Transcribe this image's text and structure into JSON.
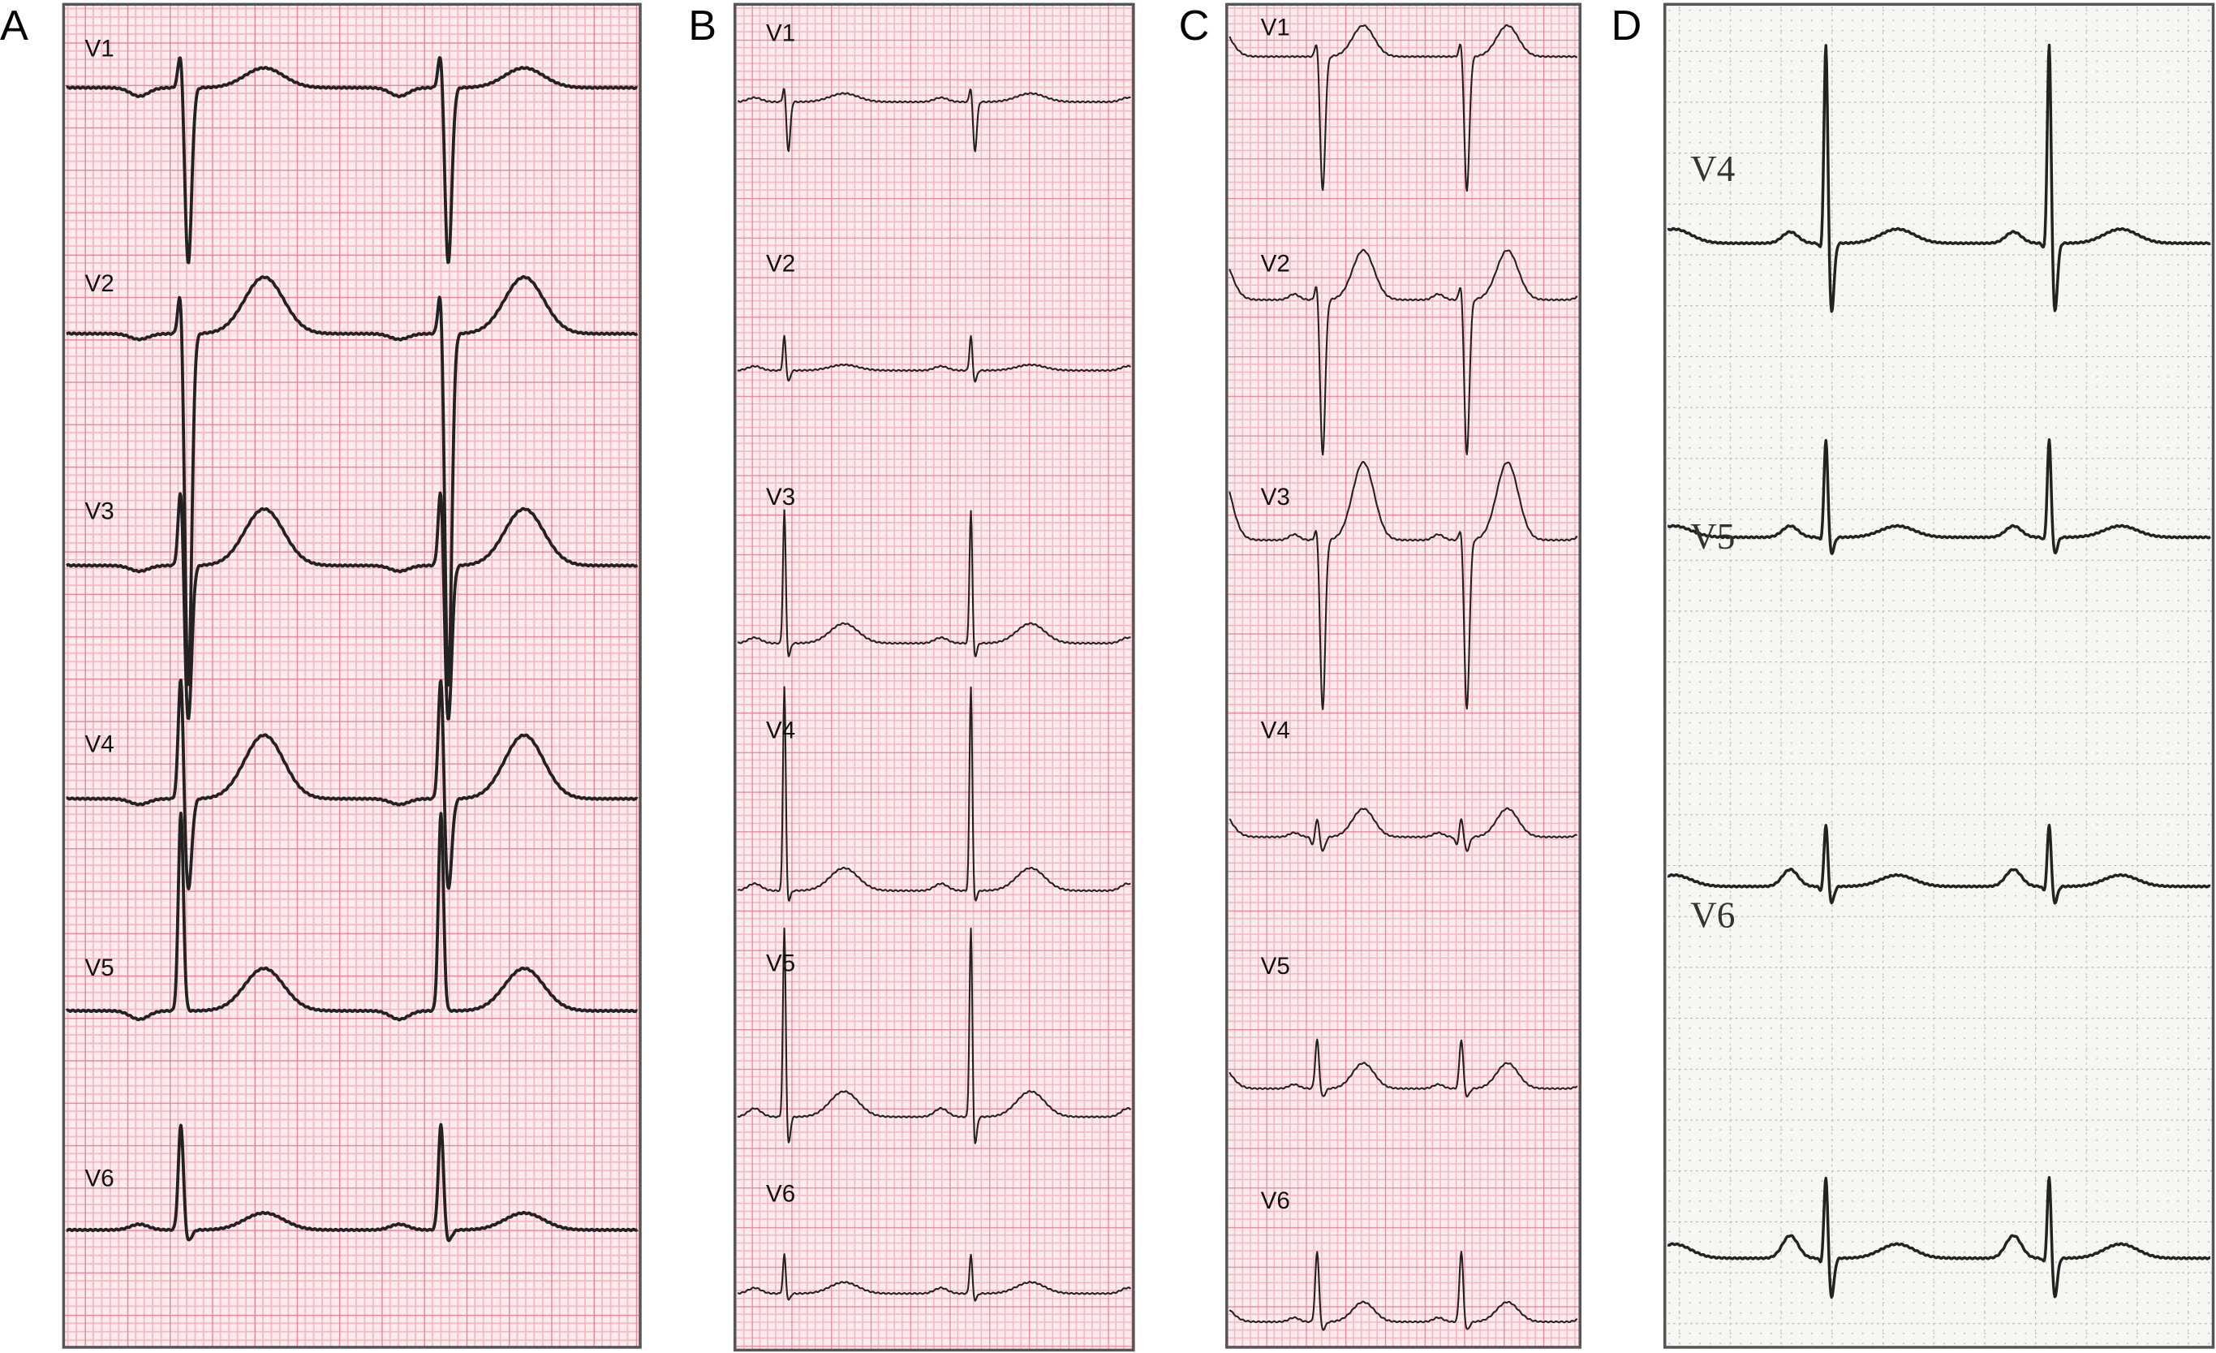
{
  "panels": [
    {
      "label": "A",
      "leads": [
        "V1",
        "V2",
        "V3",
        "V4",
        "V5",
        "V6"
      ],
      "paper": "pink grid"
    },
    {
      "label": "B",
      "leads": [
        "V1",
        "V2",
        "V3",
        "V4",
        "V5",
        "V6"
      ],
      "paper": "pink grid"
    },
    {
      "label": "C",
      "leads": [
        "V1",
        "V2",
        "V3",
        "V4",
        "V5",
        "V6"
      ],
      "paper": "pink grid"
    },
    {
      "label": "D",
      "leads": [
        "V4",
        "V5",
        "V6"
      ],
      "paper": "dotted grey grid"
    }
  ],
  "colors": {
    "grid_major": "#f07f92",
    "grid_minor": "#f6b7c1",
    "paper": "#fcecee",
    "trace": "#222222",
    "paper_d": "#f7f6f2",
    "grid_d": "#9a9a9a"
  }
}
